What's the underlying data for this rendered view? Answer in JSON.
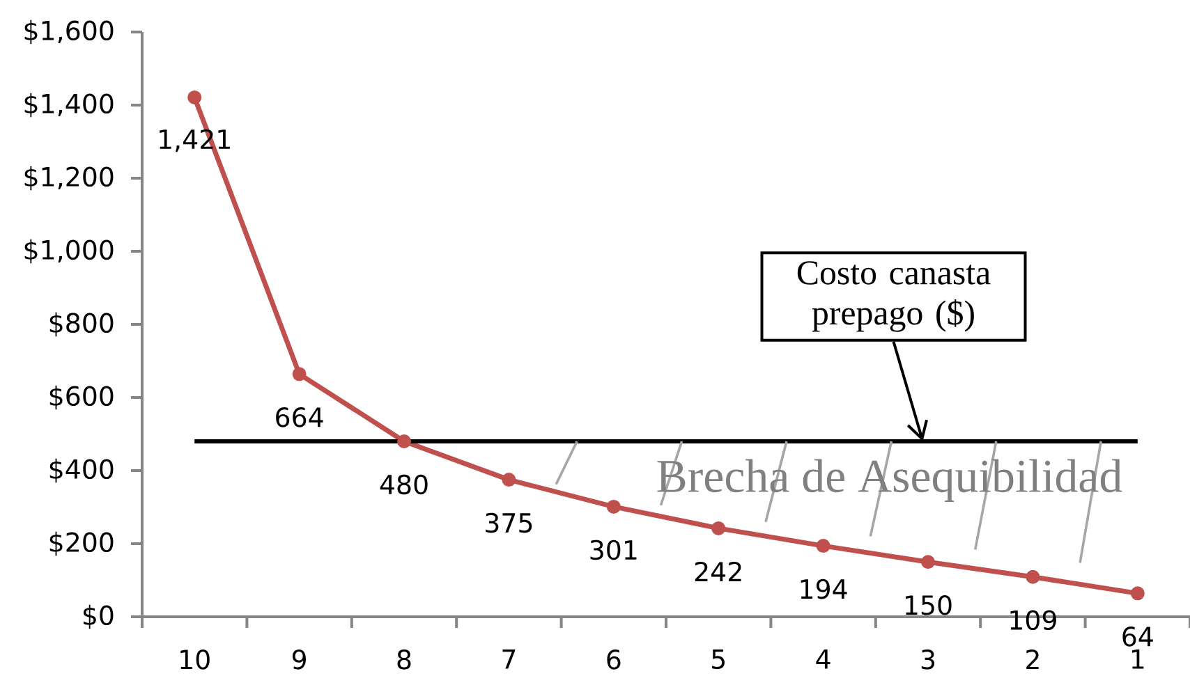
{
  "chart_data": {
    "type": "line",
    "categories": [
      "10",
      "9",
      "8",
      "7",
      "6",
      "5",
      "4",
      "3",
      "2",
      "1"
    ],
    "values": [
      1421,
      664,
      480,
      375,
      301,
      242,
      194,
      150,
      109,
      64
    ],
    "value_labels": [
      "1,421",
      "664",
      "480",
      "375",
      "301",
      "242",
      "194",
      "150",
      "109",
      "64"
    ],
    "color": "#c0504d",
    "marker": "circle",
    "line_style": "solid",
    "ylim": [
      0,
      1600
    ],
    "yticks": [
      {
        "value": 0,
        "label": "$0"
      },
      {
        "value": 200,
        "label": "$200"
      },
      {
        "value": 400,
        "label": "$400"
      },
      {
        "value": 600,
        "label": "$600"
      },
      {
        "value": 800,
        "label": "$800"
      },
      {
        "value": 1000,
        "label": "$1,000"
      },
      {
        "value": 1200,
        "label": "$1,200"
      },
      {
        "value": 1400,
        "label": "$1,400"
      },
      {
        "value": 1600,
        "label": "$1,600"
      }
    ],
    "ref_lines": [
      {
        "axis": "y",
        "value": 480,
        "label": "Costo canasta prepago ($)",
        "color": "#000000"
      }
    ],
    "annotations": [
      "Brecha de Asequibilidad"
    ]
  }
}
